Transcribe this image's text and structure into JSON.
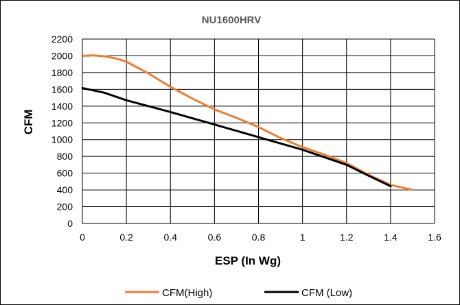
{
  "chart_data": {
    "type": "line",
    "title": "NU1600HRV",
    "xlabel": "ESP (In Wg)",
    "ylabel": "CFM",
    "xlim": [
      0,
      1.6
    ],
    "ylim": [
      0,
      2200
    ],
    "x_ticks": [
      "0",
      "0.2",
      "0.4",
      "0.6",
      "0.8",
      "1",
      "1.2",
      "1.4",
      "1.6"
    ],
    "y_ticks": [
      "0",
      "200",
      "400",
      "600",
      "800",
      "1000",
      "1200",
      "1400",
      "1600",
      "1800",
      "2000",
      "2200"
    ],
    "grid": true,
    "legend_position": "bottom",
    "series": [
      {
        "name": "CFM(High)",
        "color": "#ED7D31",
        "x": [
          0,
          0.05,
          0.1,
          0.15,
          0.2,
          0.3,
          0.4,
          0.5,
          0.6,
          0.7,
          0.8,
          0.9,
          1.0,
          1.1,
          1.2,
          1.3,
          1.4,
          1.5
        ],
        "y": [
          2000,
          2005,
          1995,
          1970,
          1930,
          1790,
          1630,
          1490,
          1360,
          1260,
          1150,
          1020,
          910,
          820,
          720,
          580,
          460,
          400
        ]
      },
      {
        "name": "CFM (Low)",
        "color": "#000000",
        "x": [
          0,
          0.1,
          0.2,
          0.4,
          0.6,
          0.8,
          1.0,
          1.2,
          1.3,
          1.4
        ],
        "y": [
          1615,
          1560,
          1470,
          1330,
          1180,
          1030,
          880,
          700,
          570,
          445
        ]
      }
    ]
  }
}
